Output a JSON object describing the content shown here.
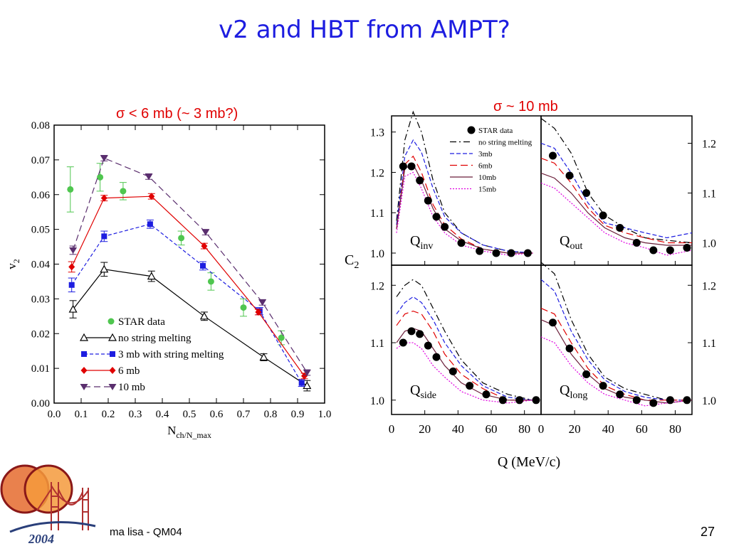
{
  "slide": {
    "title": "v2 and HBT from AMPT?",
    "left_subtitle": "σ < 6 mb (~ 3 mb?)",
    "right_subtitle": "σ ~ 10 mb",
    "footer_author": "ma lisa - QM04",
    "page_number": "27",
    "logo_year": "2004"
  },
  "chart_data": [
    {
      "type": "line",
      "xlabel": "N_ch/N_max",
      "ylabel": "v_2",
      "xlim": [
        0,
        1.0
      ],
      "ylim": [
        0,
        0.08
      ],
      "x_ticks": [
        "0.0",
        "0.1",
        "0.2",
        "0.3",
        "0.4",
        "0.5",
        "0.6",
        "0.7",
        "0.8",
        "0.9",
        "1.0"
      ],
      "y_ticks": [
        "0.00",
        "0.01",
        "0.02",
        "0.03",
        "0.04",
        "0.05",
        "0.06",
        "0.07",
        "0.08"
      ],
      "legend_position": "bottom-left",
      "series": [
        {
          "name": "STAR data",
          "color": "#4fc64f",
          "style": "markers",
          "x": [
            0.06,
            0.17,
            0.255,
            0.47,
            0.58,
            0.7,
            0.84
          ],
          "y": [
            0.0615,
            0.065,
            0.061,
            0.0475,
            0.035,
            0.0275,
            0.0188
          ],
          "err": [
            0.0065,
            0.004,
            0.0025,
            0.002,
            0.0025,
            0.0025,
            0.002
          ]
        },
        {
          "name": "no string melting",
          "color": "#000000",
          "style": "solid-open-triangle",
          "x": [
            0.07,
            0.185,
            0.36,
            0.555,
            0.775,
            0.935
          ],
          "y": [
            0.027,
            0.0385,
            0.0365,
            0.025,
            0.0132,
            0.005
          ],
          "err": [
            0.0025,
            0.002,
            0.0015,
            0.0012,
            0.001,
            0.0015
          ]
        },
        {
          "name": "3 mb with string melting",
          "color": "#1d1de0",
          "style": "dashed-square",
          "x": [
            0.065,
            0.185,
            0.355,
            0.55,
            0.76,
            0.915
          ],
          "y": [
            0.034,
            0.048,
            0.0515,
            0.0395,
            0.0265,
            0.0058
          ],
          "err": [
            0.002,
            0.0015,
            0.0012,
            0.0012,
            0.001,
            0.001
          ]
        },
        {
          "name": "6 mb",
          "color": "#e00000",
          "style": "solid-diamond",
          "x": [
            0.065,
            0.185,
            0.36,
            0.555,
            0.755,
            0.925
          ],
          "y": [
            0.0392,
            0.059,
            0.0595,
            0.0452,
            0.0262,
            0.0078
          ],
          "err": [
            0.0015,
            0.0008,
            0.0008,
            0.0008,
            0.0008,
            0.0008
          ]
        },
        {
          "name": "10 mb",
          "color": "#5a2e6e",
          "style": "longdash-down-triangle",
          "x": [
            0.07,
            0.185,
            0.35,
            0.56,
            0.77,
            0.935
          ],
          "y": [
            0.044,
            0.0705,
            0.0652,
            0.0492,
            0.029,
            0.0088
          ],
          "err": [
            0.0012,
            0.0008,
            0.0008,
            0.0008,
            0.0008,
            0.0008
          ]
        }
      ]
    },
    {
      "type": "line",
      "xlabel": "Q (MeV/c)",
      "ylabel": "C_2",
      "x_ticks": [
        "0",
        "20",
        "40",
        "60",
        "80"
      ],
      "legend_position": "top-right of Q_inv panel",
      "legend": [
        "STAR data",
        "no string melting",
        "3mb",
        "6mb",
        "10mb",
        "15mb"
      ],
      "colors": {
        "star": "#000000",
        "no_sm": "#000000",
        "mb3": "#1d1de0",
        "mb6": "#e00000",
        "mb10": "#6b1f3a",
        "mb15": "#e000e0"
      },
      "panels": [
        {
          "label": "Q_inv",
          "xlim": [
            0,
            90
          ],
          "ylim": [
            0.97,
            1.34
          ],
          "y_ticks": [
            "1.0",
            "1.1",
            "1.2",
            "1.3"
          ],
          "tick_side": "left",
          "star": {
            "x": [
              7,
              12,
              17,
              22,
              27,
              32,
              42,
              53,
              63,
              72,
              82
            ],
            "y": [
              1.215,
              1.215,
              1.18,
              1.13,
              1.09,
              1.065,
              1.025,
              1.005,
              1.0,
              1.0,
              1.0
            ]
          },
          "curves": {
            "no_sm": {
              "x": [
                3,
                8,
                13,
                18,
                25,
                32,
                42,
                55,
                70,
                85
              ],
              "y": [
                1.08,
                1.28,
                1.35,
                1.3,
                1.18,
                1.1,
                1.05,
                1.02,
                1.005,
                1.0
              ]
            },
            "mb3": {
              "x": [
                3,
                8,
                13,
                18,
                25,
                32,
                42,
                55,
                70,
                85
              ],
              "y": [
                1.07,
                1.24,
                1.28,
                1.25,
                1.16,
                1.09,
                1.05,
                1.02,
                1.005,
                1.0
              ]
            },
            "mb6": {
              "x": [
                3,
                8,
                13,
                18,
                25,
                32,
                42,
                55,
                70,
                85
              ],
              "y": [
                1.06,
                1.22,
                1.24,
                1.2,
                1.12,
                1.07,
                1.035,
                1.01,
                1.0,
                1.0
              ]
            },
            "mb10": {
              "x": [
                3,
                8,
                13,
                18,
                25,
                32,
                42,
                55,
                70,
                85
              ],
              "y": [
                1.06,
                1.21,
                1.22,
                1.18,
                1.11,
                1.06,
                1.03,
                1.01,
                1.0,
                1.0
              ]
            },
            "mb15": {
              "x": [
                3,
                8,
                13,
                18,
                25,
                32,
                42,
                55,
                70,
                85
              ],
              "y": [
                1.05,
                1.19,
                1.2,
                1.16,
                1.09,
                1.05,
                1.02,
                1.005,
                0.995,
                1.0
              ]
            }
          }
        },
        {
          "label": "Q_out",
          "xlim": [
            0,
            90
          ],
          "ylim": [
            0.955,
            1.255
          ],
          "y_ticks": [
            "1.0",
            "1.1",
            "1.2"
          ],
          "tick_side": "right",
          "star": {
            "x": [
              7,
              17,
              27,
              37,
              47,
              57,
              67,
              77,
              87
            ],
            "y": [
              1.175,
              1.135,
              1.1,
              1.055,
              1.03,
              1.0,
              0.985,
              0.985,
              0.99
            ]
          },
          "curves": {
            "no_sm": {
              "x": [
                0,
                8,
                18,
                28,
                38,
                50,
                62,
                75,
                90
              ],
              "y": [
                1.25,
                1.23,
                1.18,
                1.1,
                1.055,
                1.03,
                1.01,
                1.005,
                1.0
              ]
            },
            "mb3": {
              "x": [
                0,
                8,
                18,
                28,
                38,
                50,
                62,
                75,
                90
              ],
              "y": [
                1.2,
                1.19,
                1.14,
                1.08,
                1.04,
                1.03,
                1.02,
                1.01,
                1.02
              ]
            },
            "mb6": {
              "x": [
                0,
                8,
                18,
                28,
                38,
                50,
                62,
                75,
                90
              ],
              "y": [
                1.17,
                1.16,
                1.12,
                1.07,
                1.035,
                1.02,
                1.01,
                1.0,
                1.0
              ]
            },
            "mb10": {
              "x": [
                0,
                8,
                18,
                28,
                38,
                50,
                62,
                75,
                90
              ],
              "y": [
                1.14,
                1.13,
                1.1,
                1.06,
                1.03,
                1.01,
                1.0,
                0.995,
                0.995
              ]
            },
            "mb15": {
              "x": [
                0,
                8,
                18,
                28,
                38,
                50,
                62,
                75,
                90
              ],
              "y": [
                1.12,
                1.11,
                1.08,
                1.05,
                1.02,
                1.0,
                0.99,
                0.975,
                0.985
              ]
            }
          }
        },
        {
          "label": "Q_side",
          "xlim": [
            0,
            90
          ],
          "ylim": [
            0.975,
            1.235
          ],
          "y_ticks": [
            "1.0",
            "1.1",
            "1.2"
          ],
          "tick_side": "left",
          "star": {
            "x": [
              7,
              12,
              17,
              22,
              27,
              37,
              47,
              57,
              67,
              77,
              87
            ],
            "y": [
              1.1,
              1.12,
              1.115,
              1.095,
              1.075,
              1.05,
              1.025,
              1.01,
              1.0,
              1.0,
              1.0
            ]
          },
          "curves": {
            "no_sm": {
              "x": [
                3,
                8,
                13,
                18,
                25,
                32,
                42,
                55,
                70,
                85
              ],
              "y": [
                1.18,
                1.2,
                1.21,
                1.2,
                1.16,
                1.12,
                1.07,
                1.03,
                1.01,
                1.0
              ]
            },
            "mb3": {
              "x": [
                3,
                8,
                13,
                18,
                25,
                32,
                42,
                55,
                70,
                85
              ],
              "y": [
                1.15,
                1.17,
                1.18,
                1.17,
                1.14,
                1.1,
                1.06,
                1.025,
                1.005,
                1.0
              ]
            },
            "mb6": {
              "x": [
                3,
                8,
                13,
                18,
                25,
                32,
                42,
                55,
                70,
                85
              ],
              "y": [
                1.13,
                1.15,
                1.155,
                1.15,
                1.12,
                1.08,
                1.045,
                1.02,
                1.0,
                1.0
              ]
            },
            "mb10": {
              "x": [
                3,
                8,
                13,
                18,
                25,
                32,
                42,
                55,
                70,
                85
              ],
              "y": [
                1.1,
                1.12,
                1.125,
                1.12,
                1.09,
                1.06,
                1.03,
                1.01,
                1.0,
                1.0
              ]
            },
            "mb15": {
              "x": [
                3,
                8,
                13,
                18,
                25,
                32,
                42,
                55,
                70,
                85
              ],
              "y": [
                1.09,
                1.1,
                1.1,
                1.09,
                1.06,
                1.04,
                1.015,
                1.0,
                0.995,
                1.0
              ]
            }
          }
        },
        {
          "label": "Q_long",
          "xlim": [
            0,
            90
          ],
          "ylim": [
            0.975,
            1.235
          ],
          "y_ticks": [
            "1.0",
            "1.1",
            "1.2"
          ],
          "tick_side": "right",
          "star": {
            "x": [
              7,
              17,
              27,
              37,
              47,
              57,
              67,
              77,
              87
            ],
            "y": [
              1.135,
              1.09,
              1.045,
              1.025,
              1.01,
              1.0,
              0.995,
              1.0,
              1.0
            ]
          },
          "curves": {
            "no_sm": {
              "x": [
                0,
                8,
                18,
                28,
                38,
                50,
                62,
                75,
                90
              ],
              "y": [
                1.24,
                1.22,
                1.14,
                1.08,
                1.04,
                1.02,
                1.01,
                1.0,
                1.0
              ]
            },
            "mb3": {
              "x": [
                0,
                8,
                18,
                28,
                38,
                50,
                62,
                75,
                90
              ],
              "y": [
                1.21,
                1.19,
                1.12,
                1.07,
                1.035,
                1.015,
                1.005,
                1.0,
                1.0
              ]
            },
            "mb6": {
              "x": [
                0,
                8,
                18,
                28,
                38,
                50,
                62,
                75,
                90
              ],
              "y": [
                1.16,
                1.15,
                1.1,
                1.055,
                1.025,
                1.01,
                1.0,
                1.0,
                1.0
              ]
            },
            "mb10": {
              "x": [
                0,
                8,
                18,
                28,
                38,
                50,
                62,
                75,
                90
              ],
              "y": [
                1.14,
                1.13,
                1.08,
                1.045,
                1.02,
                1.005,
                1.0,
                0.995,
                1.0
              ]
            },
            "mb15": {
              "x": [
                0,
                8,
                18,
                28,
                38,
                50,
                62,
                75,
                90
              ],
              "y": [
                1.11,
                1.1,
                1.06,
                1.03,
                1.01,
                1.0,
                0.99,
                0.995,
                1.0
              ]
            }
          }
        }
      ]
    }
  ]
}
